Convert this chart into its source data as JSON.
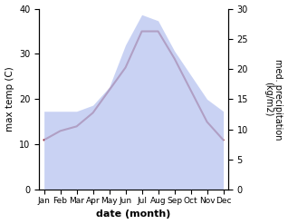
{
  "months": [
    "Jan",
    "Feb",
    "Mar",
    "Apr",
    "May",
    "Jun",
    "Jul",
    "Aug",
    "Sep",
    "Oct",
    "Nov",
    "Dec"
  ],
  "max_temp": [
    11,
    13,
    14,
    17,
    22,
    27,
    35,
    35,
    29,
    22,
    15,
    11
  ],
  "precipitation": [
    13,
    13,
    13,
    14,
    17,
    24,
    29,
    28,
    23,
    19,
    15,
    13
  ],
  "temp_ylim": [
    0,
    40
  ],
  "precip_ylim": [
    0,
    30
  ],
  "fill_color": "#b8c4f0",
  "fill_alpha": 0.75,
  "precip_line_color": "#c8c8e8",
  "temp_line_color": "#993344",
  "xlabel": "date (month)",
  "ylabel_left": "max temp (C)",
  "ylabel_right": "med. precipitation\n(kg/m2)",
  "tick_yticks_left": [
    0,
    10,
    20,
    30,
    40
  ],
  "tick_yticks_right": [
    0,
    5,
    10,
    15,
    20,
    25,
    30
  ]
}
